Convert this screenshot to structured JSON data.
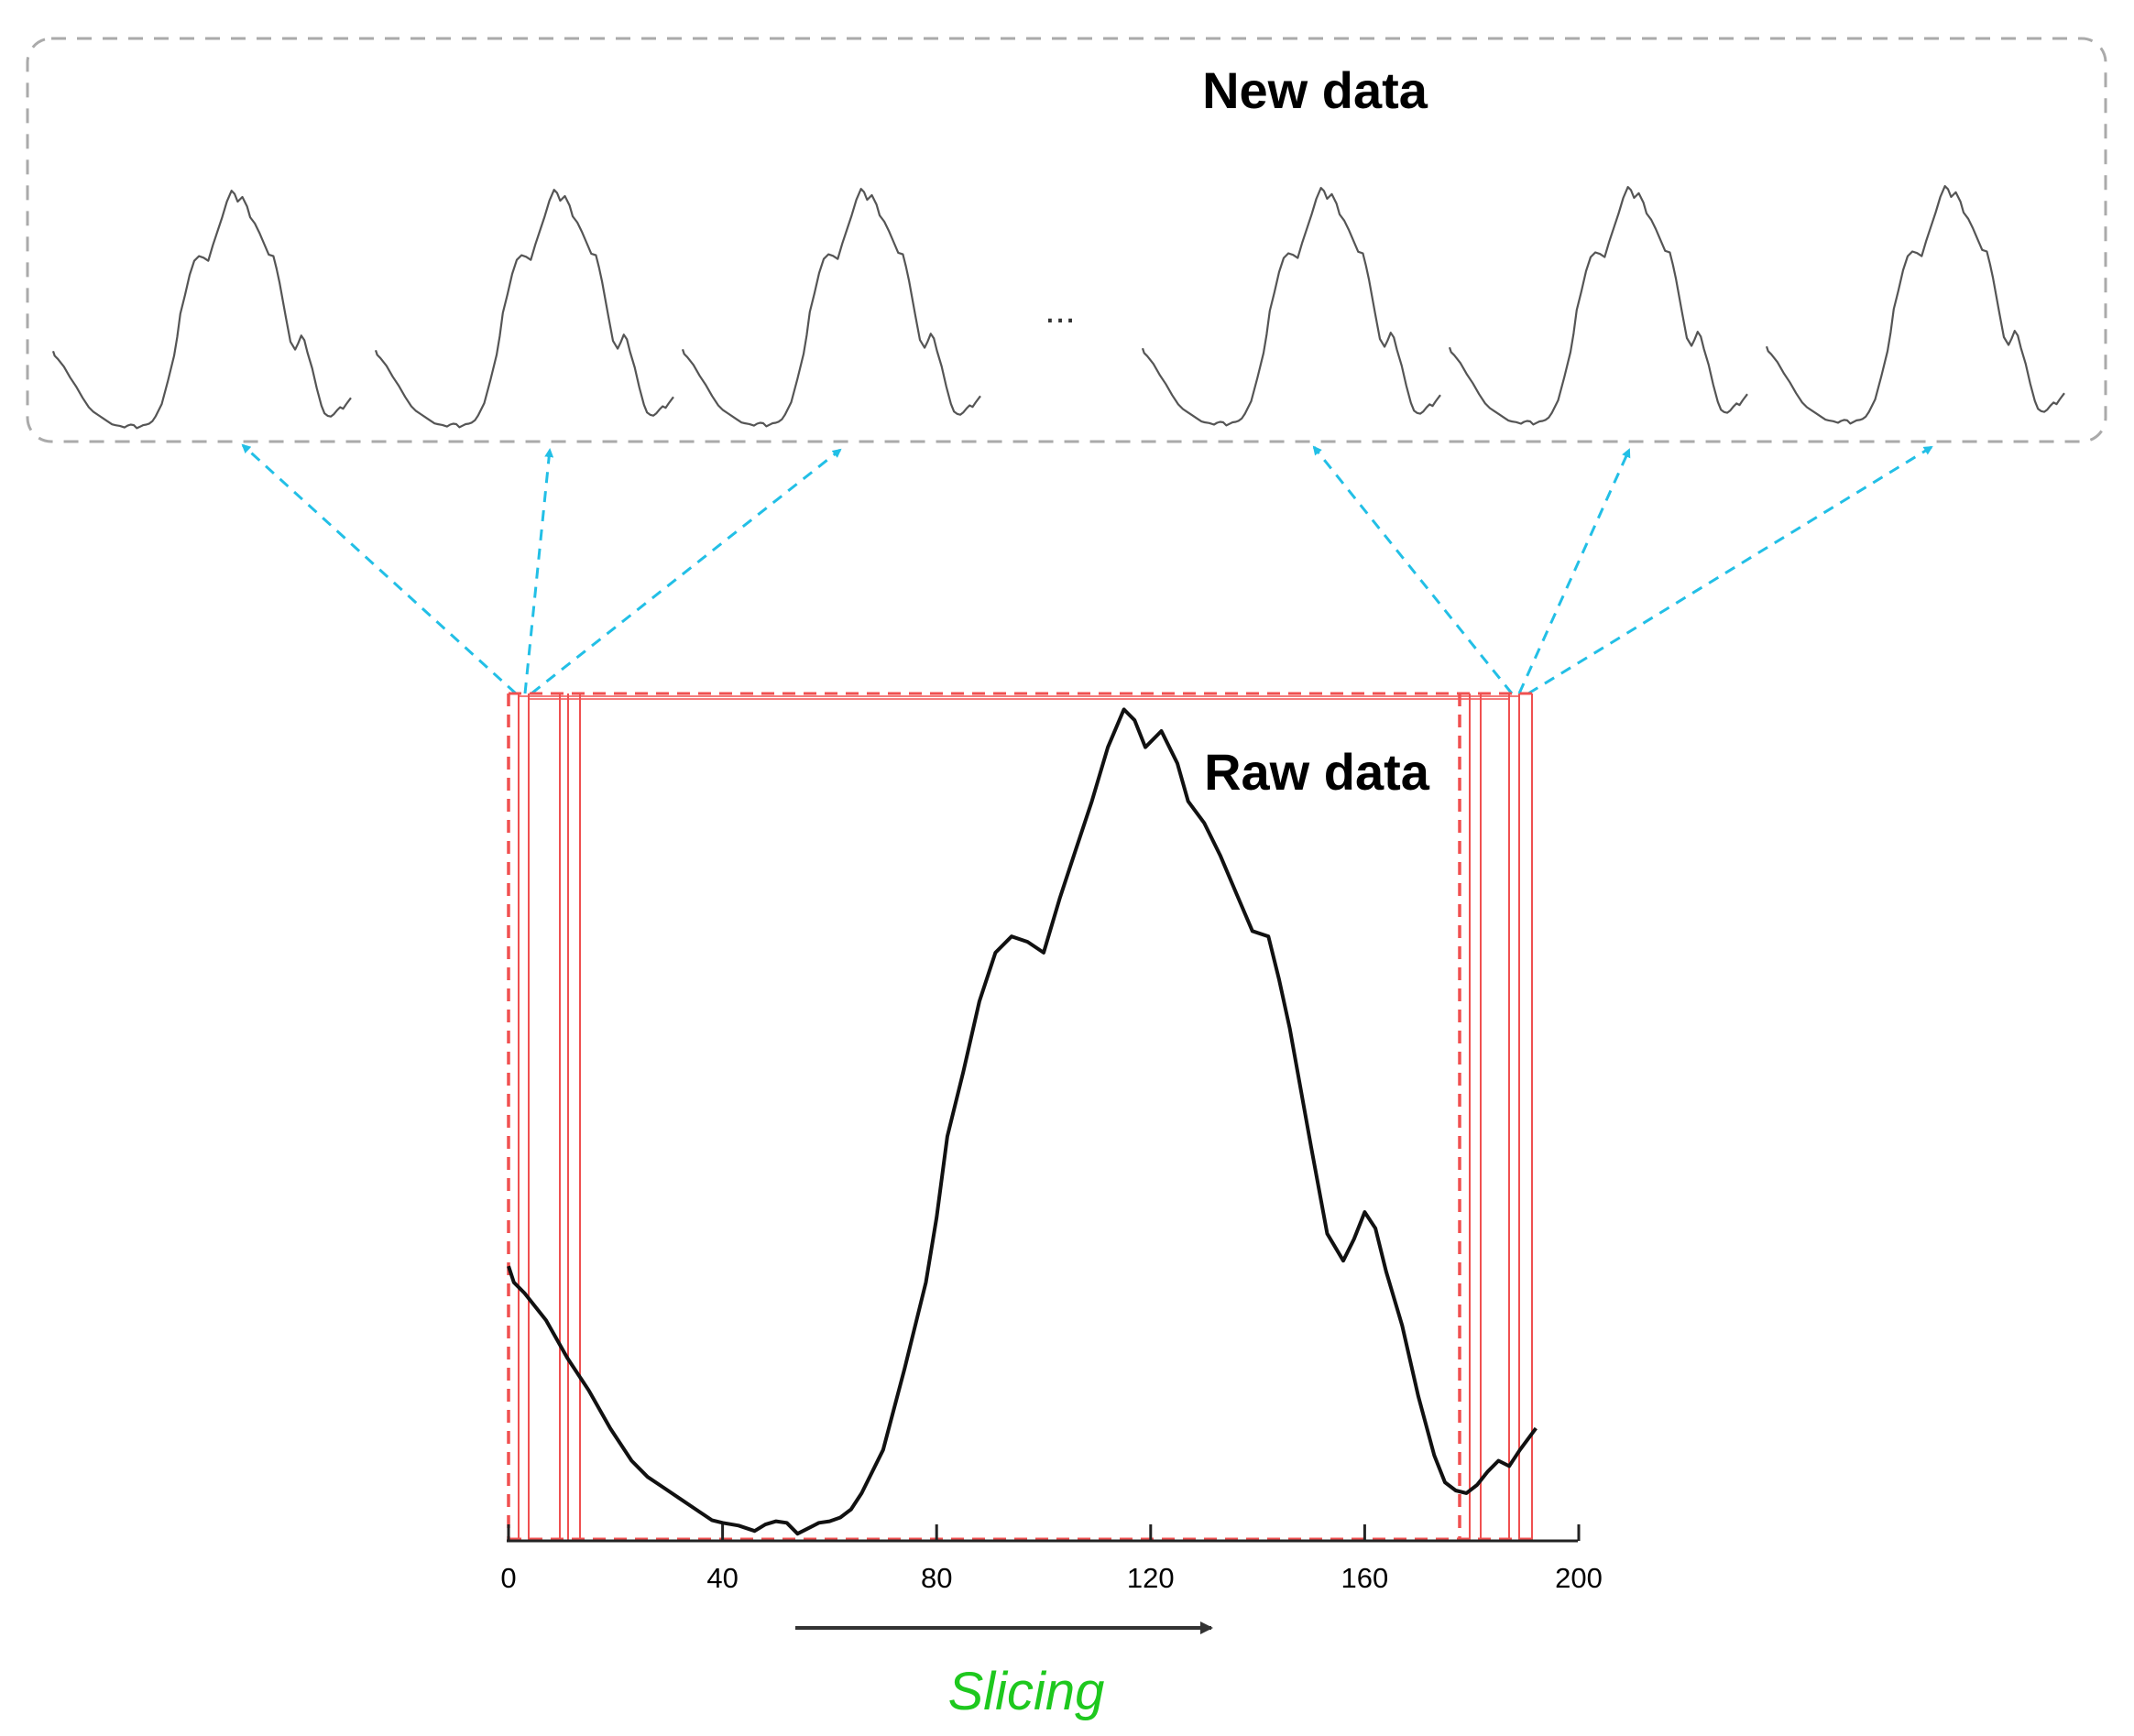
{
  "new_data_label": "New data",
  "raw_data_label": "Raw data",
  "ellipsis": "...",
  "slicing_label": "Slicing",
  "x_ticks": [
    "0",
    "40",
    "80",
    "120",
    "160",
    "200"
  ],
  "x_range": [
    0,
    200
  ],
  "slice_count_shown": 6,
  "colors": {
    "raw_line": "#111111",
    "thumb_line": "#555555",
    "slice_lines": "#f05050",
    "arrows": "#22bfe6",
    "new_data_border": "#aaaaaa",
    "slicing_text": "#1ec81e",
    "slicing_arrow": "#333333"
  },
  "raw_series": {
    "x": [
      0,
      1,
      3,
      7,
      11,
      15,
      19,
      23,
      26,
      29,
      32,
      35,
      38,
      40,
      43,
      46,
      48,
      50,
      52,
      54,
      56,
      58,
      60,
      62,
      64,
      66,
      70,
      74,
      78,
      80,
      82,
      85,
      88,
      91,
      94,
      97,
      100,
      103,
      106,
      109,
      112,
      115,
      117,
      119,
      122,
      125,
      127,
      130,
      133,
      136,
      139,
      142,
      144,
      146,
      150,
      153,
      156,
      158,
      160,
      162,
      164,
      167,
      170,
      173,
      175,
      177,
      179,
      181,
      183,
      185,
      187,
      189,
      192
    ],
    "y": [
      51,
      48,
      46,
      41,
      34,
      28,
      21,
      15,
      12,
      10,
      8,
      6,
      4,
      3.5,
      3,
      2,
      3.2,
      3.8,
      3.5,
      1.5,
      2.5,
      3.5,
      3.8,
      4.5,
      6,
      9,
      17,
      32,
      48,
      60,
      75,
      87,
      100,
      109,
      112,
      111,
      109,
      119,
      128,
      137,
      147,
      154,
      152,
      147,
      150,
      144,
      137,
      133,
      127,
      120,
      113,
      112,
      104,
      95,
      73,
      57,
      52,
      56,
      61,
      58,
      50,
      40,
      27,
      16,
      11,
      9.5,
      9,
      10.5,
      13,
      15,
      14,
      17,
      21
    ]
  }
}
